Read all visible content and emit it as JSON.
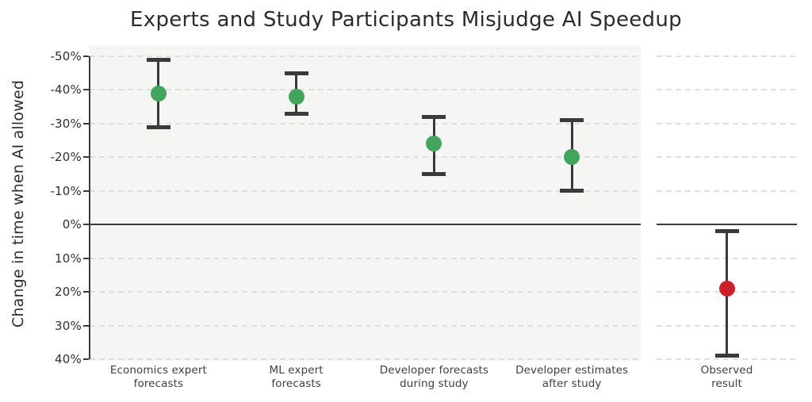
{
  "chart_data": {
    "type": "scatter",
    "subtype": "errorbar",
    "title": "Experts and Study Participants Misjudge AI Speedup",
    "ylabel": "Change in time when AI allowed",
    "xlabel": "",
    "y_ticks": [
      "-50%",
      "-40%",
      "-30%",
      "-20%",
      "-10%",
      "0%",
      "10%",
      "20%",
      "30%",
      "40%"
    ],
    "y_tick_values": [
      -50,
      -40,
      -30,
      -20,
      -10,
      0,
      10,
      20,
      30,
      40
    ],
    "y_axis_inverted": true,
    "ylim": [
      -53,
      40.5
    ],
    "grid": "horizontal-dashed",
    "zero_line": true,
    "legend": "none",
    "categories": [
      "Economics expert\nforecasts",
      "ML expert\nforecasts",
      "Developer forecasts\nduring study",
      "Developer estimates\nafter study",
      "Observed\nresult"
    ],
    "points": [
      {
        "label": "Economics expert\nforecasts",
        "value": -39,
        "ci": [
          -49,
          -29
        ],
        "color": "#43a55c",
        "panel": "main"
      },
      {
        "label": "ML expert\nforecasts",
        "value": -38,
        "ci": [
          -45,
          -33
        ],
        "color": "#43a55c",
        "panel": "main"
      },
      {
        "label": "Developer forecasts\nduring study",
        "value": -24,
        "ci": [
          -32,
          -15
        ],
        "color": "#43a55c",
        "panel": "main"
      },
      {
        "label": "Developer estimates\nafter study",
        "value": -20,
        "ci": [
          -31,
          -10
        ],
        "color": "#43a55c",
        "panel": "main"
      },
      {
        "label": "Observed\nresult",
        "value": 19,
        "ci": [
          2,
          39
        ],
        "color": "#cb202c",
        "panel": "right"
      }
    ]
  },
  "colors": {
    "forecast_green": "#43a55c",
    "observed_red": "#cb202c",
    "whisker": "#3a3a3a",
    "gridline": "#dbdbd5",
    "panel_background": "#f5f5f3",
    "zero_line": "#3c3c3c",
    "title_text": "#2b2b2b",
    "tick_text": "#2f2f2f",
    "category_text": "#3f3f3f"
  }
}
